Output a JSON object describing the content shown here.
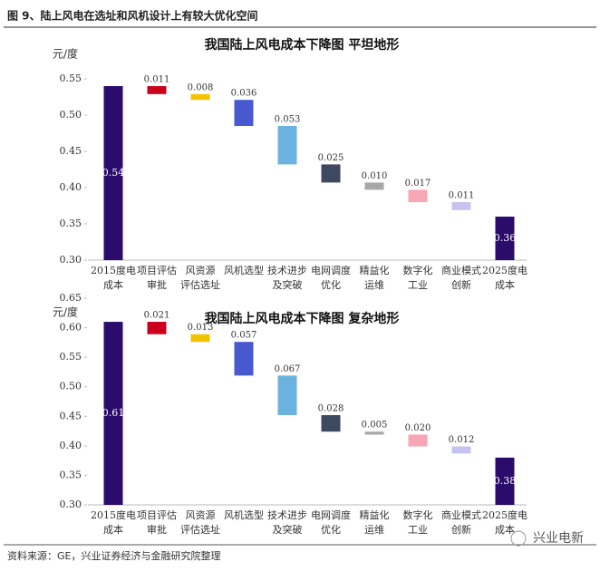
{
  "header": "图 9、陆上风电在选址和风机设计上有较大优化空间",
  "source": "资料来源：GE，兴业证券经济与金融研究院整理",
  "watermark": "兴业电新",
  "chart_data": [
    {
      "type": "waterfall",
      "title": "我国陆上风电成本下降图    平坦地形",
      "ylabel": "元/度",
      "categories": [
        "2015度电\n成本",
        "项目评估\n审批",
        "风资源\n评估选址",
        "风机选型",
        "技术进步\n及突破",
        "电网调度\n优化",
        "精益化\n运维",
        "数字化\n工业",
        "商业模式\n创新",
        "2025度电\n成本"
      ],
      "values": [
        0.54,
        0.011,
        0.008,
        0.036,
        0.053,
        0.025,
        0.01,
        0.017,
        0.011,
        0.36
      ],
      "value_labels": [
        "0.54",
        "0.011",
        "0.008",
        "0.036",
        "0.053",
        "0.025",
        "0.010",
        "0.017",
        "0.011",
        "0.36"
      ],
      "colors": [
        "#2b0b6b",
        "#c8001e",
        "#f3c200",
        "#4858cf",
        "#6cb2de",
        "#3c4960",
        "#a8a8a8",
        "#f6a6b4",
        "#c7c3ef",
        "#2b0b6b"
      ],
      "ylim": [
        0.3,
        0.55
      ],
      "yticks": [
        {
          "value": 0.3,
          "label": "0.30"
        },
        {
          "value": 0.35,
          "label": "0.35"
        },
        {
          "value": 0.4,
          "label": "0.40"
        },
        {
          "value": 0.45,
          "label": "0.45"
        },
        {
          "value": 0.5,
          "label": "0.50"
        },
        {
          "value": 0.55,
          "label": "0.55"
        }
      ]
    },
    {
      "type": "waterfall",
      "title": "我国陆上风电成本下降图    复杂地形",
      "ylabel": "元/度",
      "categories": [
        "2015度电\n成本",
        "项目评估\n审批",
        "风资源\n评估选址",
        "风机选型",
        "技术进步\n及突破",
        "电网调度\n优化",
        "精益化\n运维",
        "数字化\n工业",
        "商业模式\n创新",
        "2025度电\n成本"
      ],
      "values": [
        0.61,
        0.021,
        0.013,
        0.057,
        0.067,
        0.028,
        0.005,
        0.02,
        0.012,
        0.38
      ],
      "value_labels": [
        "0.61",
        "0.021",
        "0.013",
        "0.057",
        "0.067",
        "0.028",
        "0.005",
        "0.020",
        "0.012",
        "0.38"
      ],
      "colors": [
        "#2b0b6b",
        "#c8001e",
        "#f3c200",
        "#4858cf",
        "#6cb2de",
        "#3c4960",
        "#a8a8a8",
        "#f6a6b4",
        "#c7c3ef",
        "#2b0b6b"
      ],
      "ylim": [
        0.3,
        0.65
      ],
      "yticks": [
        {
          "value": 0.3,
          "label": "0.30"
        },
        {
          "value": 0.35,
          "label": "0.35"
        },
        {
          "value": 0.4,
          "label": "0.40"
        },
        {
          "value": 0.45,
          "label": "0.45"
        },
        {
          "value": 0.5,
          "label": "0.50"
        },
        {
          "value": 0.55,
          "label": "0.55"
        },
        {
          "value": 0.6,
          "label": "0.60"
        },
        {
          "value": 0.65,
          "label": "0.65"
        }
      ]
    }
  ]
}
